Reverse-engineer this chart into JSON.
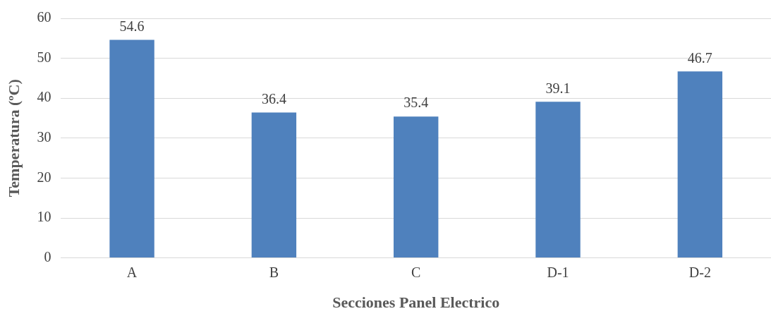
{
  "chart_data": {
    "type": "bar",
    "xlabel": "Secciones Panel Electrico",
    "ylabel": "Temperatura (ºC)",
    "categories": [
      "A",
      "B",
      "C",
      "D-1",
      "D-2"
    ],
    "values": [
      54.6,
      36.4,
      35.4,
      39.1,
      46.7
    ],
    "color": "#4f81bd",
    "ylim": [
      0,
      60
    ],
    "yticks": [
      0,
      10,
      20,
      30,
      40,
      50,
      60
    ],
    "grid": "y",
    "data_labels": true,
    "legend": false
  }
}
